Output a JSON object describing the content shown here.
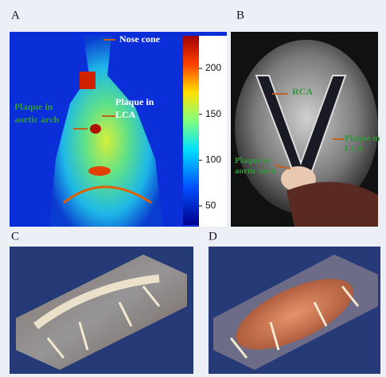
{
  "panels": [
    {
      "label": "A",
      "annotations": [
        "Nose cone",
        "Plaque in aortic arch",
        "Plaque in LCA"
      ],
      "colorbar_ticks": [
        50,
        100,
        150,
        200
      ]
    },
    {
      "label": "B",
      "annotations": [
        "RCA",
        "Plaque in LCA",
        "Plaque in aortic arch"
      ]
    },
    {
      "label": "C"
    },
    {
      "label": "D"
    }
  ]
}
